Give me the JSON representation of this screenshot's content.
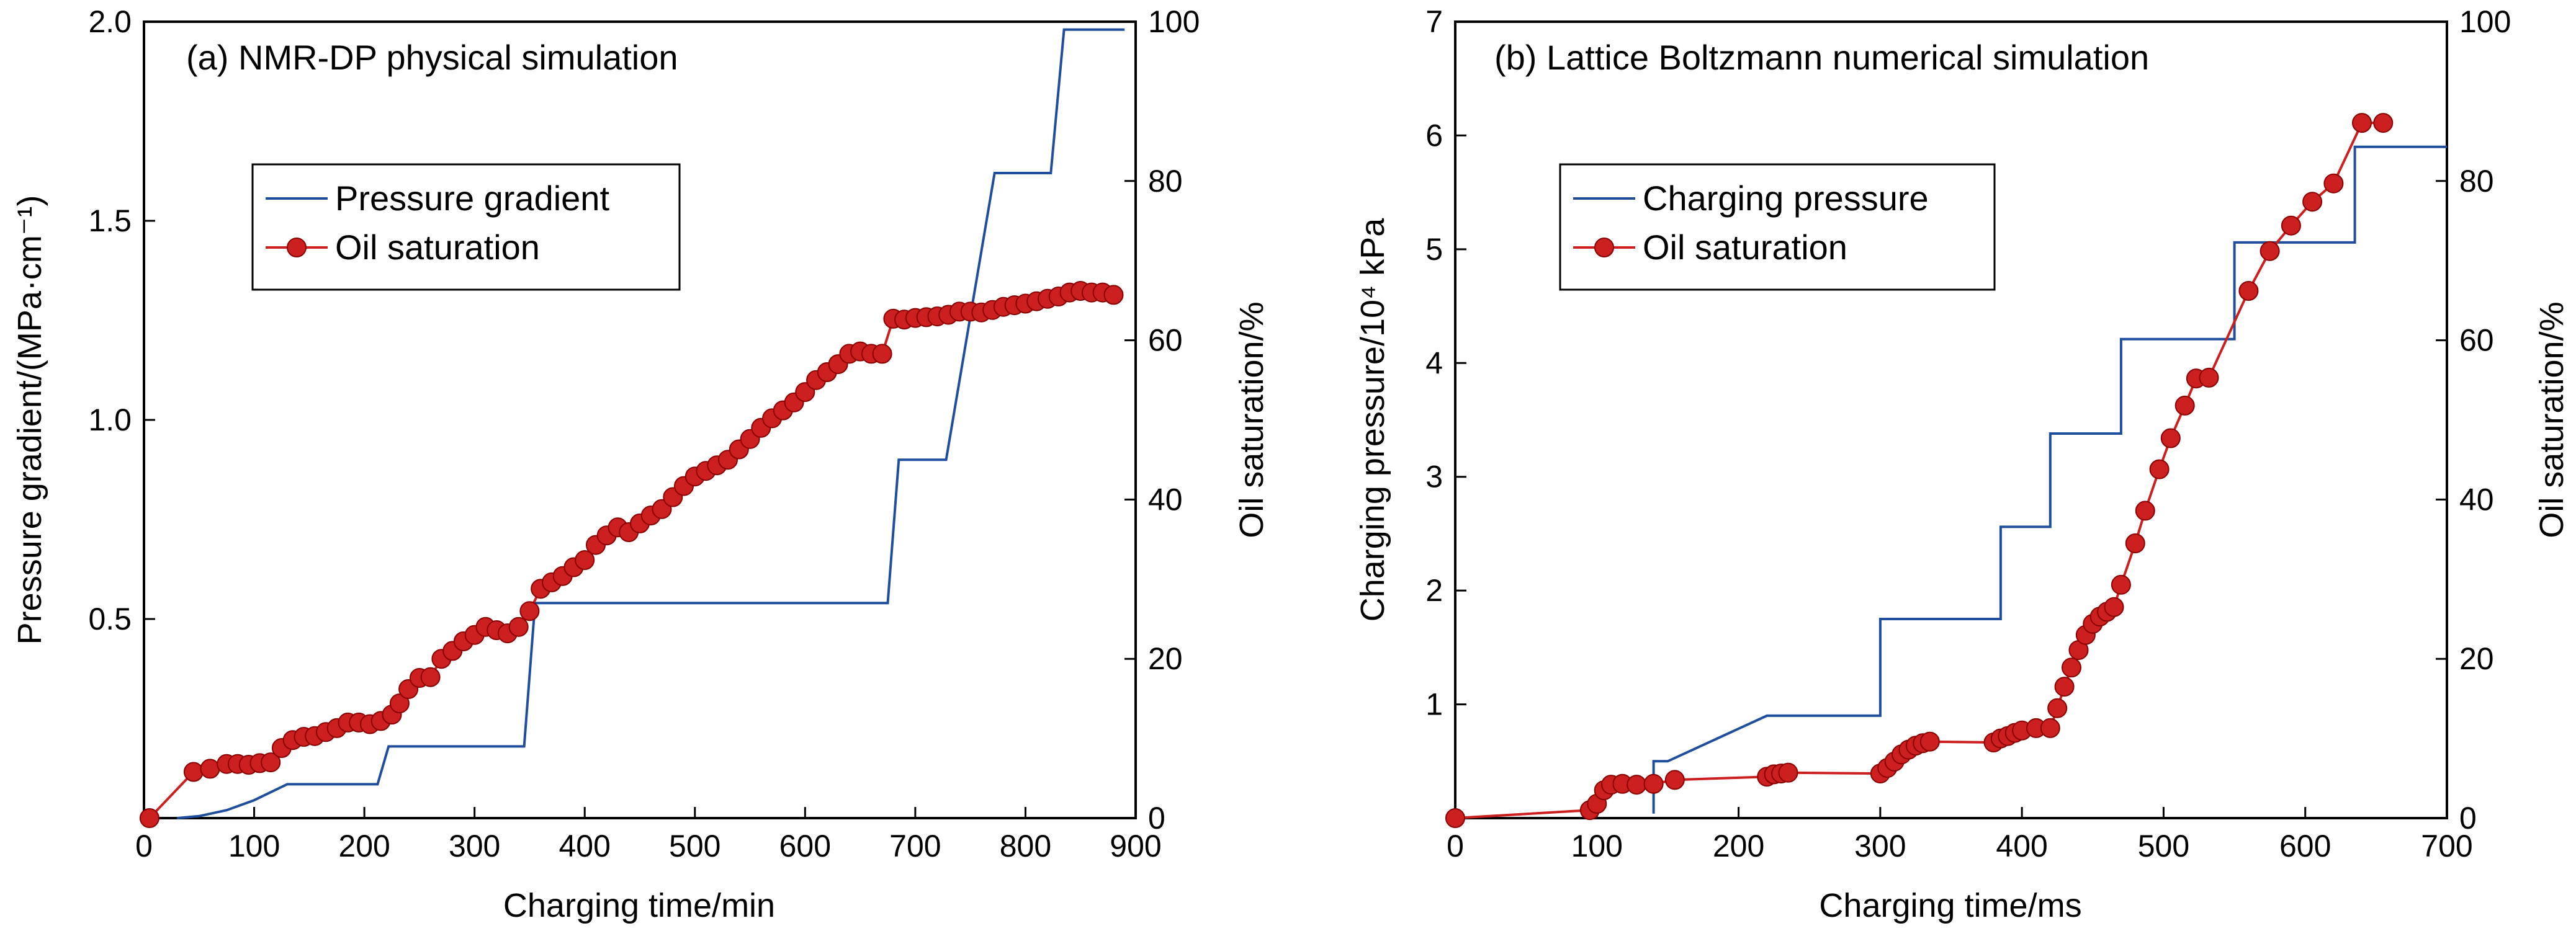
{
  "chart_data": [
    {
      "type": "line",
      "title": "(a) NMR-DP physical simulation",
      "xlabel": "Charging time/min",
      "ylabel_left": "Pressure gradient/(MPa·cm⁻¹)",
      "ylabel_right": "Oil saturation/%",
      "xlim": [
        0,
        900
      ],
      "ylim_left": [
        0,
        2.0
      ],
      "ylim_right": [
        0,
        100
      ],
      "xticks": [
        "0",
        "100",
        "200",
        "300",
        "400",
        "500",
        "600",
        "700",
        "800",
        "900"
      ],
      "yticks_left": [
        "0.5",
        "1.0",
        "1.5",
        "2.0"
      ],
      "yticks_right": [
        "0",
        "20",
        "40",
        "60",
        "80",
        "100"
      ],
      "legend": [
        "Pressure gradient",
        "Oil saturation"
      ],
      "legend_position": "upper-left",
      "grid": false,
      "series": [
        {
          "name": "Pressure gradient",
          "axis": "left",
          "color": "#1f4e9c",
          "marker": "none",
          "points": [
            [
              30,
              0
            ],
            [
              50,
              0.005
            ],
            [
              75,
              0.02
            ],
            [
              100,
              0.045
            ],
            [
              130,
              0.085
            ],
            [
              212,
              0.085
            ],
            [
              222,
              0.18
            ],
            [
              345,
              0.18
            ],
            [
              355,
              0.54
            ],
            [
              675,
              0.54
            ],
            [
              685,
              0.9
            ],
            [
              728,
              0.9
            ],
            [
              772,
              1.62
            ],
            [
              823,
              1.62
            ],
            [
              835,
              1.98
            ],
            [
              890,
              1.98
            ]
          ]
        },
        {
          "name": "Oil saturation",
          "axis": "right",
          "color": "#cc1f1f",
          "marker": "circle",
          "points": [
            [
              5,
              0
            ],
            [
              45,
              5.8
            ],
            [
              60,
              6.2
            ],
            [
              75,
              6.8
            ],
            [
              85,
              6.8
            ],
            [
              95,
              6.7
            ],
            [
              105,
              6.9
            ],
            [
              115,
              7.0
            ],
            [
              125,
              8.8
            ],
            [
              135,
              9.8
            ],
            [
              145,
              10.2
            ],
            [
              155,
              10.3
            ],
            [
              165,
              10.8
            ],
            [
              175,
              11.3
            ],
            [
              185,
              12.0
            ],
            [
              195,
              12.0
            ],
            [
              205,
              11.8
            ],
            [
              215,
              12.2
            ],
            [
              225,
              13.0
            ],
            [
              232,
              14.4
            ],
            [
              240,
              16.2
            ],
            [
              250,
              17.6
            ],
            [
              260,
              17.7
            ],
            [
              270,
              20.0
            ],
            [
              280,
              21.0
            ],
            [
              290,
              22.2
            ],
            [
              300,
              23.0
            ],
            [
              310,
              24.0
            ],
            [
              320,
              23.6
            ],
            [
              330,
              23.2
            ],
            [
              340,
              24.0
            ],
            [
              350,
              26.0
            ],
            [
              360,
              28.8
            ],
            [
              370,
              29.6
            ],
            [
              380,
              30.4
            ],
            [
              390,
              31.5
            ],
            [
              400,
              32.4
            ],
            [
              410,
              34.3
            ],
            [
              420,
              35.5
            ],
            [
              430,
              36.5
            ],
            [
              440,
              35.9
            ],
            [
              450,
              37.0
            ],
            [
              460,
              38.0
            ],
            [
              470,
              38.8
            ],
            [
              480,
              40.3
            ],
            [
              490,
              41.7
            ],
            [
              500,
              42.9
            ],
            [
              510,
              43.6
            ],
            [
              520,
              44.3
            ],
            [
              530,
              45.0
            ],
            [
              540,
              46.3
            ],
            [
              550,
              47.6
            ],
            [
              560,
              49.0
            ],
            [
              570,
              50.2
            ],
            [
              580,
              51.2
            ],
            [
              590,
              52.2
            ],
            [
              600,
              53.5
            ],
            [
              610,
              55.0
            ],
            [
              620,
              56.0
            ],
            [
              630,
              57.0
            ],
            [
              640,
              58.3
            ],
            [
              650,
              58.6
            ],
            [
              660,
              58.3
            ],
            [
              670,
              58.3
            ],
            [
              680,
              62.7
            ],
            [
              690,
              62.6
            ],
            [
              700,
              62.8
            ],
            [
              710,
              62.9
            ],
            [
              720,
              63.0
            ],
            [
              730,
              63.2
            ],
            [
              740,
              63.6
            ],
            [
              750,
              63.6
            ],
            [
              760,
              63.5
            ],
            [
              770,
              63.8
            ],
            [
              780,
              64.2
            ],
            [
              790,
              64.4
            ],
            [
              800,
              64.6
            ],
            [
              810,
              64.9
            ],
            [
              820,
              65.2
            ],
            [
              830,
              65.5
            ],
            [
              840,
              66.0
            ],
            [
              850,
              66.2
            ],
            [
              860,
              66.0
            ],
            [
              870,
              66.0
            ],
            [
              880,
              65.7
            ]
          ]
        }
      ]
    },
    {
      "type": "line",
      "title": "(b) Lattice Boltzmann numerical simulation",
      "xlabel": "Charging time/ms",
      "ylabel_left": "Charging pressure/10⁴ kPa",
      "ylabel_right": "Oil saturation/%",
      "xlim": [
        0,
        700
      ],
      "ylim_left": [
        0,
        7
      ],
      "ylim_right": [
        0,
        100
      ],
      "xticks": [
        "0",
        "100",
        "200",
        "300",
        "400",
        "500",
        "600",
        "700"
      ],
      "yticks_left": [
        "1",
        "2",
        "3",
        "4",
        "5",
        "6",
        "7"
      ],
      "yticks_right": [
        "0",
        "20",
        "40",
        "60",
        "80",
        "100"
      ],
      "legend": [
        "Charging pressure",
        "Oil saturation"
      ],
      "legend_position": "upper-left",
      "grid": false,
      "series": [
        {
          "name": "Charging pressure",
          "axis": "left",
          "color": "#1f4e9c",
          "marker": "none",
          "points": [
            [
              140,
              0.04
            ],
            [
              140,
              0.5
            ],
            [
              150,
              0.5
            ],
            [
              220,
              0.9
            ],
            [
              300,
              0.9
            ],
            [
              300,
              1.75
            ],
            [
              385,
              1.75
            ],
            [
              385,
              2.56
            ],
            [
              420,
              2.56
            ],
            [
              420,
              3.38
            ],
            [
              470,
              3.38
            ],
            [
              470,
              4.21
            ],
            [
              550,
              4.21
            ],
            [
              550,
              5.06
            ],
            [
              635,
              5.06
            ],
            [
              635,
              5.9
            ],
            [
              700,
              5.9
            ]
          ]
        },
        {
          "name": "Oil saturation",
          "axis": "right",
          "color": "#cc1f1f",
          "marker": "circle",
          "points": [
            [
              0,
              0
            ],
            [
              95,
              1.0
            ],
            [
              100,
              1.8
            ],
            [
              105,
              3.5
            ],
            [
              110,
              4.2
            ],
            [
              118,
              4.3
            ],
            [
              128,
              4.2
            ],
            [
              140,
              4.3
            ],
            [
              155,
              4.8
            ],
            [
              220,
              5.2
            ],
            [
              225,
              5.5
            ],
            [
              230,
              5.6
            ],
            [
              235,
              5.7
            ],
            [
              300,
              5.6
            ],
            [
              305,
              6.3
            ],
            [
              310,
              7.1
            ],
            [
              315,
              8.0
            ],
            [
              320,
              8.6
            ],
            [
              325,
              9.1
            ],
            [
              330,
              9.4
            ],
            [
              335,
              9.6
            ],
            [
              380,
              9.5
            ],
            [
              385,
              10.0
            ],
            [
              390,
              10.3
            ],
            [
              395,
              10.7
            ],
            [
              400,
              11.0
            ],
            [
              410,
              11.3
            ],
            [
              420,
              11.3
            ],
            [
              425,
              13.8
            ],
            [
              430,
              16.5
            ],
            [
              435,
              18.9
            ],
            [
              440,
              21.1
            ],
            [
              445,
              23.0
            ],
            [
              450,
              24.4
            ],
            [
              455,
              25.3
            ],
            [
              460,
              25.9
            ],
            [
              465,
              26.5
            ],
            [
              470,
              29.3
            ],
            [
              480,
              34.5
            ],
            [
              487,
              38.6
            ],
            [
              497,
              43.8
            ],
            [
              505,
              47.7
            ],
            [
              515,
              51.8
            ],
            [
              523,
              55.2
            ],
            [
              532,
              55.3
            ],
            [
              560,
              66.2
            ],
            [
              575,
              71.2
            ],
            [
              590,
              74.4
            ],
            [
              605,
              77.4
            ],
            [
              620,
              79.7
            ],
            [
              640,
              87.3
            ],
            [
              655,
              87.3
            ]
          ]
        }
      ]
    }
  ]
}
